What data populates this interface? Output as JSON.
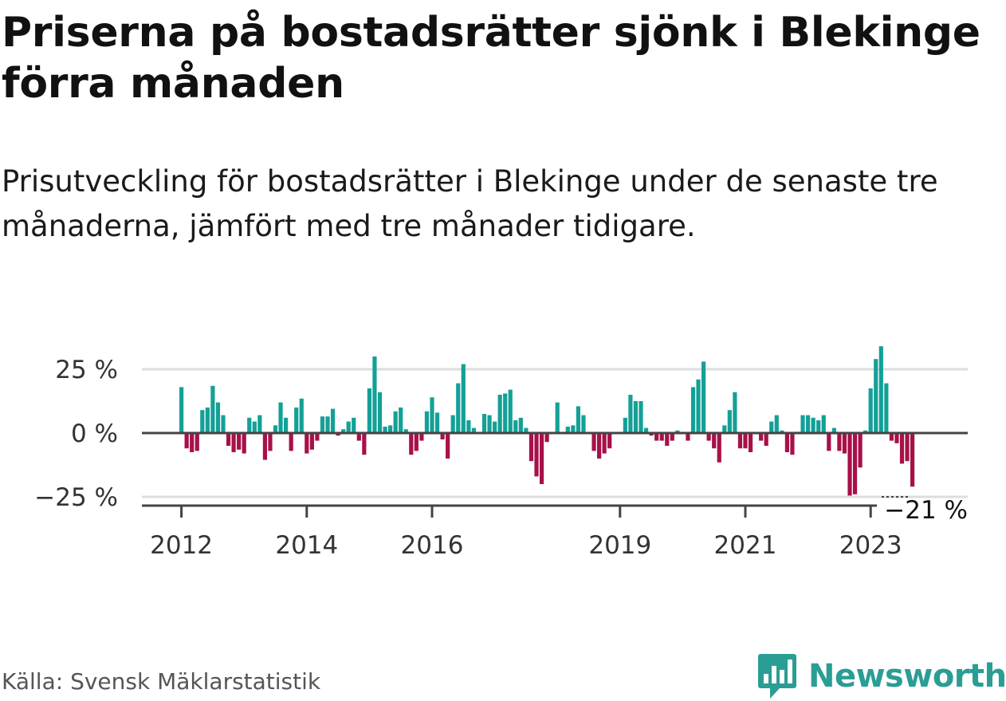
{
  "header": {
    "title": "Priserna på bostadsrätter sjönk i Blekinge förra månaden",
    "subtitle": "Prisutveckling för bostadsrätter i Blekinge under de senaste tre månaderna, jämfört med tre månader tidigare."
  },
  "footer": {
    "source": "Källa: Svensk Mäklarstatistik",
    "brand": "Newsworthy",
    "brand_icon": "newsworthy-bar-chart-icon"
  },
  "colors": {
    "positive": "#14a097",
    "negative": "#a8104a",
    "grid": "#dddddd",
    "baseline": "#444444",
    "axis": "#444444",
    "text": "#333333",
    "brand": "#2a9d95"
  },
  "chart_data": {
    "type": "bar",
    "unit": "%",
    "y_ticks": [
      {
        "value": 25,
        "label": "25 %"
      },
      {
        "value": 0,
        "label": "0 %"
      },
      {
        "value": -25,
        "label": "−25 %"
      }
    ],
    "ylim": [
      -28,
      36
    ],
    "x_ticks": [
      {
        "index": 0,
        "label": "2012"
      },
      {
        "index": 24,
        "label": "2014"
      },
      {
        "index": 48,
        "label": "2016"
      },
      {
        "index": 84,
        "label": "2019"
      },
      {
        "index": 108,
        "label": "2021"
      },
      {
        "index": 132,
        "label": "2023"
      }
    ],
    "last_label": "−21 %",
    "grid": true,
    "series": [
      {
        "values": [
          18,
          -6,
          -7.5,
          -7,
          9,
          10,
          18.5,
          12,
          7,
          -5,
          -7.5,
          -6.5,
          -8,
          6,
          4.5,
          7,
          -10.5,
          -7,
          3,
          12,
          6,
          -7,
          10,
          13.5,
          -8,
          -6.5,
          -3,
          6.5,
          6.5,
          9.5,
          -1,
          1.5,
          4.5,
          6,
          -3,
          -8.5,
          17.5,
          30,
          16,
          2.5,
          3,
          8.5,
          10,
          1.5,
          -8.5,
          -7,
          -3,
          8.5,
          14,
          8,
          -2.5,
          -10,
          7,
          19.5,
          27,
          5,
          2,
          0,
          7.5,
          7,
          4.5,
          15,
          15.5,
          17,
          5,
          6,
          2,
          -11,
          -17,
          -20,
          -3.5,
          0,
          12,
          0,
          2.5,
          3,
          10.5,
          7,
          0,
          -7,
          -10,
          -8,
          -6,
          0,
          0,
          6,
          15,
          12.5,
          12.5,
          2,
          -1,
          -3,
          -3,
          -5,
          -3,
          1,
          0,
          -3,
          18,
          21,
          28,
          -3,
          -6,
          -11.5,
          3,
          9,
          16,
          -6,
          -6,
          -7.5,
          0,
          -3,
          -5,
          4.5,
          7,
          1,
          -7.5,
          -8.5,
          0.5,
          7,
          7,
          6,
          5,
          7,
          -7,
          2,
          -7,
          -8,
          -24.5,
          -24,
          -13.5,
          1,
          17.5,
          29,
          34,
          19.5,
          -3,
          -4,
          -12,
          -11,
          -21
        ]
      }
    ]
  }
}
